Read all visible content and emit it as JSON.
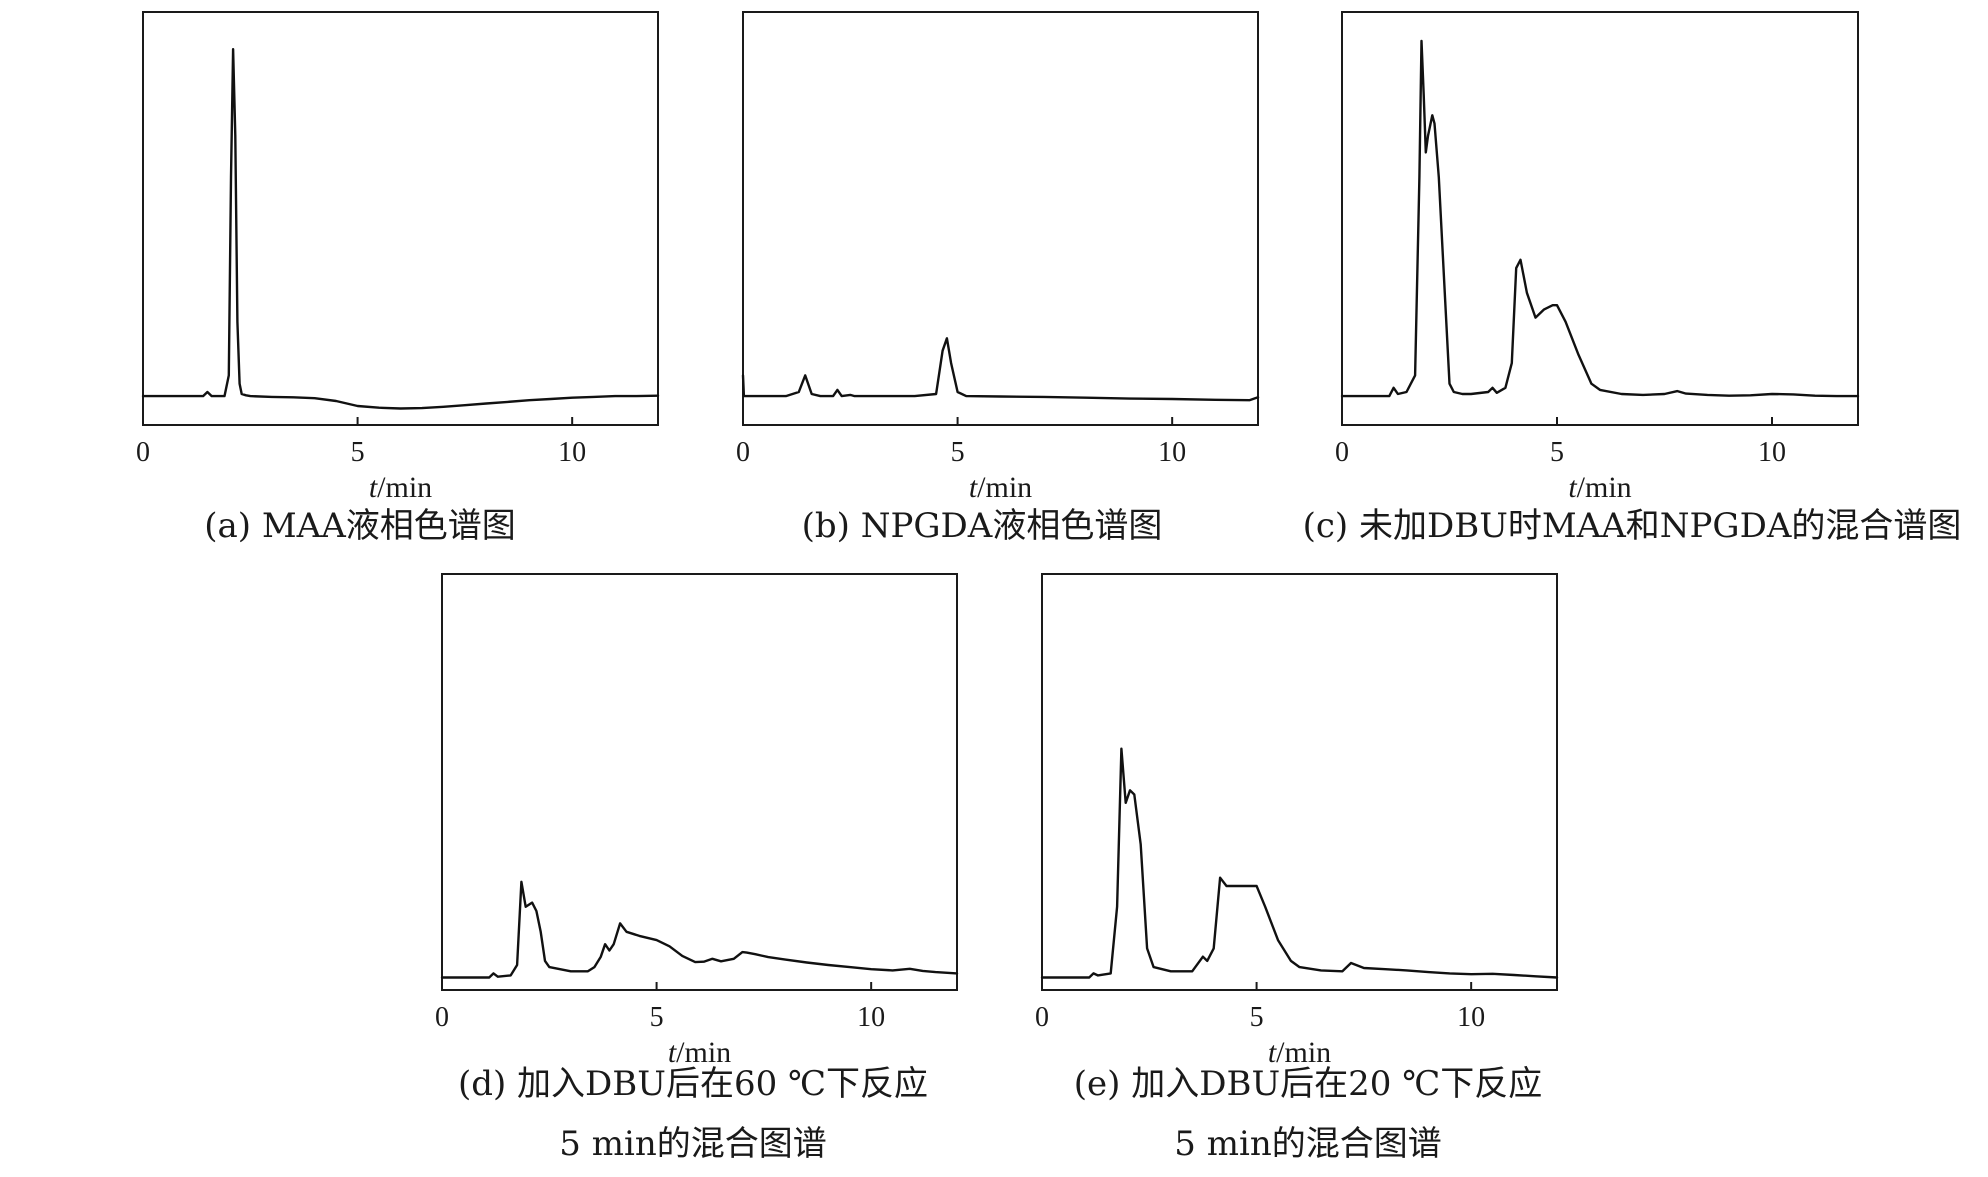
{
  "panels": [
    {
      "id": "a",
      "caption_lines": [
        "(a) MAA液相色谱图"
      ],
      "chart_data": {
        "type": "line",
        "xlabel": "t/min",
        "ylabel": "",
        "xlim": [
          0,
          12
        ],
        "ylim": [
          0,
          100
        ],
        "xticks": [
          0,
          5,
          10
        ],
        "grid": false,
        "series": [
          {
            "x": [
              0,
              0.5,
              1.0,
              1.4,
              1.5,
              1.6,
              1.9,
              2.0,
              2.05,
              2.1,
              2.15,
              2.2,
              2.25,
              2.3,
              2.4,
              2.5,
              3.0,
              3.5,
              4.0,
              4.5,
              5.0,
              5.5,
              6.0,
              6.5,
              7.0,
              7.5,
              8.0,
              8.5,
              9.0,
              9.5,
              10.0,
              10.5,
              11.0,
              11.5,
              12.0
            ],
            "y": [
              7,
              7,
              7,
              7,
              8,
              7,
              7,
              12,
              60,
              91,
              70,
              25,
              10,
              7.5,
              7.2,
              7,
              6.8,
              6.7,
              6.5,
              5.8,
              4.6,
              4.2,
              4.0,
              4.1,
              4.4,
              4.8,
              5.2,
              5.6,
              6.0,
              6.3,
              6.6,
              6.8,
              7.0,
              7.0,
              7.1
            ]
          }
        ]
      }
    },
    {
      "id": "b",
      "caption_lines": [
        "(b) NPGDA液相色谱图"
      ],
      "chart_data": {
        "type": "line",
        "xlabel": "t/min",
        "ylabel": "",
        "xlim": [
          0,
          12
        ],
        "ylim": [
          0,
          100
        ],
        "xticks": [
          0,
          5,
          10
        ],
        "grid": false,
        "series": [
          {
            "x": [
              0,
              0.02,
              0.1,
              0.5,
              1.0,
              1.3,
              1.45,
              1.6,
              1.8,
              2.1,
              2.2,
              2.3,
              2.5,
              2.6,
              3.0,
              4.0,
              4.5,
              4.65,
              4.75,
              4.85,
              5.0,
              5.2,
              6.0,
              7.0,
              8.0,
              9.0,
              10.0,
              11.0,
              11.8,
              12.0
            ],
            "y": [
              12,
              7,
              7,
              7,
              7,
              8,
              12,
              7.5,
              7,
              7,
              8.5,
              7,
              7.3,
              7,
              7,
              7,
              7.5,
              18,
              21,
              15,
              8,
              7,
              6.9,
              6.8,
              6.6,
              6.4,
              6.3,
              6.1,
              6.0,
              6.7
            ]
          }
        ]
      }
    },
    {
      "id": "c",
      "caption_lines": [
        "(c) 未加DBU时MAA和NPGDA的混合谱图"
      ],
      "chart_data": {
        "type": "line",
        "xlabel": "t/min",
        "ylabel": "",
        "xlim": [
          0,
          12
        ],
        "ylim": [
          0,
          100
        ],
        "xticks": [
          0,
          5,
          10
        ],
        "grid": false,
        "series": [
          {
            "x": [
              0,
              0.5,
              1.1,
              1.2,
              1.3,
              1.5,
              1.7,
              1.8,
              1.85,
              1.9,
              1.95,
              2.0,
              2.1,
              2.15,
              2.25,
              2.4,
              2.5,
              2.6,
              2.8,
              3.0,
              3.4,
              3.5,
              3.6,
              3.8,
              3.95,
              4.05,
              4.15,
              4.3,
              4.5,
              4.7,
              4.9,
              5.0,
              5.2,
              5.5,
              5.8,
              6.0,
              6.5,
              7.0,
              7.5,
              7.8,
              8.0,
              8.5,
              9.0,
              9.5,
              10.0,
              10.5,
              11.0,
              11.5,
              12.0
            ],
            "y": [
              7,
              7,
              7,
              9,
              7.5,
              8,
              12,
              60,
              93,
              80,
              66,
              70,
              75,
              73,
              60,
              30,
              10,
              8,
              7.5,
              7.5,
              8,
              9,
              7.8,
              9,
              15,
              38,
              40,
              32,
              26,
              28,
              29,
              29,
              25,
              17,
              10,
              8.5,
              7.5,
              7.3,
              7.5,
              8.2,
              7.6,
              7.3,
              7.1,
              7.2,
              7.5,
              7.4,
              7.1,
              7.0,
              7.0
            ]
          }
        ]
      }
    },
    {
      "id": "d",
      "caption_lines": [
        "(d) 加入DBU后在60 ℃下反应",
        "5 min的混合图谱"
      ],
      "chart_data": {
        "type": "line",
        "xlabel": "t/min",
        "ylabel": "",
        "xlim": [
          0,
          12
        ],
        "ylim": [
          0,
          100
        ],
        "xticks": [
          0,
          5,
          10
        ],
        "grid": false,
        "series": [
          {
            "x": [
              0,
              0.5,
              1.1,
              1.2,
              1.3,
              1.6,
              1.75,
              1.85,
              1.95,
              2.1,
              2.2,
              2.3,
              2.4,
              2.5,
              3.0,
              3.4,
              3.55,
              3.7,
              3.8,
              3.9,
              4.0,
              4.15,
              4.3,
              4.6,
              5.0,
              5.3,
              5.6,
              5.9,
              6.1,
              6.3,
              6.5,
              6.8,
              7.0,
              7.1,
              7.3,
              7.6,
              8.0,
              8.5,
              9.0,
              9.5,
              10.0,
              10.5,
              10.9,
              11.2,
              11.5,
              12.0
            ],
            "y": [
              3,
              3,
              3,
              4,
              3.2,
              3.5,
              6,
              26,
              20,
              21,
              19,
              14,
              7,
              5.5,
              4.5,
              4.5,
              5.5,
              8,
              11,
              9.5,
              11,
              16,
              14,
              13,
              12,
              10.5,
              8.2,
              6.7,
              6.8,
              7.5,
              6.9,
              7.5,
              9.1,
              9.0,
              8.6,
              7.9,
              7.3,
              6.6,
              6.0,
              5.5,
              5.0,
              4.7,
              5.1,
              4.6,
              4.3,
              4.0
            ]
          }
        ]
      }
    },
    {
      "id": "e",
      "caption_lines": [
        "(e) 加入DBU后在20 ℃下反应",
        "5 min的混合图谱"
      ],
      "chart_data": {
        "type": "line",
        "xlabel": "t/min",
        "ylabel": "",
        "xlim": [
          0,
          12
        ],
        "ylim": [
          0,
          100
        ],
        "xticks": [
          0,
          5,
          10
        ],
        "grid": false,
        "series": [
          {
            "x": [
              0,
              0.5,
              1.1,
              1.2,
              1.3,
              1.6,
              1.75,
              1.85,
              1.95,
              2.05,
              2.15,
              2.3,
              2.45,
              2.6,
              3.0,
              3.5,
              3.75,
              3.85,
              4.0,
              4.15,
              4.3,
              4.6,
              5.0,
              5.2,
              5.5,
              5.8,
              6.0,
              6.5,
              7.0,
              7.2,
              7.5,
              8.0,
              8.5,
              9.0,
              9.5,
              10.0,
              10.5,
              11.0,
              11.5,
              12.0
            ],
            "y": [
              3,
              3,
              3,
              4,
              3.5,
              4,
              20,
              58,
              45,
              48,
              47,
              35,
              10,
              5.5,
              4.5,
              4.5,
              8,
              7,
              10,
              27,
              25,
              25,
              25,
              20,
              12,
              7,
              5.5,
              4.7,
              4.5,
              6.5,
              5.3,
              5.0,
              4.7,
              4.3,
              4.0,
              3.8,
              3.9,
              3.6,
              3.3,
              3.0
            ]
          }
        ]
      }
    }
  ]
}
